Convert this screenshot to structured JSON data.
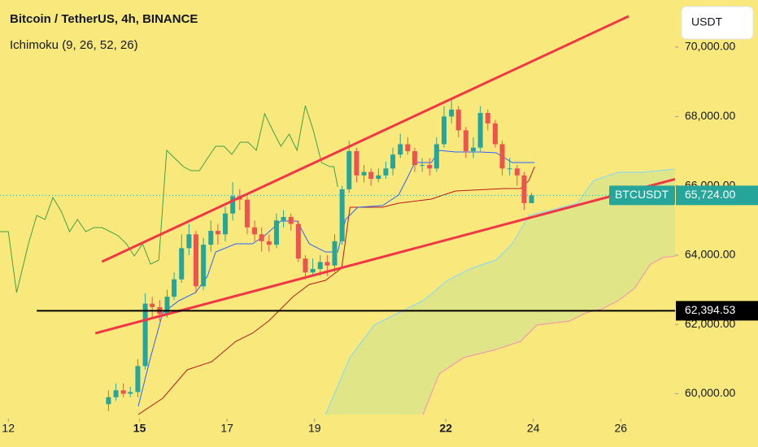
{
  "chart_data": {
    "type": "candlestick",
    "title": "Bitcoin / TetherUS, 4h, BINANCE",
    "subtitle": "Ichimoku (9, 26, 52, 26)",
    "currency_button": "USDT",
    "up_color": "#26a69a",
    "down_color": "#ef5350",
    "xlim": [
      11.81,
      27.24
    ],
    "ylim": [
      59285,
      71360
    ],
    "xticks": [
      12,
      15,
      17,
      19,
      22,
      24,
      26
    ],
    "xticks_bold": [
      false,
      true,
      false,
      false,
      true,
      false,
      false
    ],
    "yticks": [
      {
        "value": 60000,
        "label": "60,000.00"
      },
      {
        "value": 62000,
        "label": "62,000.00"
      },
      {
        "value": 64000,
        "label": "64,000.00"
      },
      {
        "value": 66000,
        "label": "66,000.00"
      },
      {
        "value": 68000,
        "label": "68,000.00"
      },
      {
        "value": 70000,
        "label": "70,000.00"
      }
    ],
    "x": [
      14.29,
      14.46,
      14.63,
      14.79,
      14.96,
      15.13,
      15.29,
      15.46,
      15.63,
      15.79,
      15.96,
      16.13,
      16.29,
      16.46,
      16.63,
      16.79,
      16.96,
      17.13,
      17.29,
      17.46,
      17.63,
      17.79,
      17.96,
      18.13,
      18.29,
      18.46,
      18.63,
      18.79,
      18.96,
      19.13,
      19.29,
      19.46,
      19.63,
      19.79,
      19.96,
      20.13,
      20.29,
      20.46,
      20.63,
      20.79,
      20.96,
      21.13,
      21.29,
      21.46,
      21.63,
      21.79,
      21.96,
      22.13,
      22.29,
      22.46,
      22.63,
      22.79,
      22.96,
      23.13,
      23.29,
      23.46,
      23.63,
      23.79,
      23.96
    ],
    "open": [
      59700,
      59900,
      60100,
      60000,
      60050,
      60800,
      62600,
      62500,
      62300,
      62800,
      63300,
      64200,
      64600,
      63100,
      64300,
      64700,
      64600,
      65200,
      65700,
      65600,
      64800,
      64600,
      64400,
      64300,
      65000,
      65100,
      64900,
      63900,
      63500,
      63600,
      63800,
      63700,
      64400,
      65900,
      67000,
      66300,
      66400,
      66200,
      66300,
      66500,
      66900,
      67200,
      67000,
      66600,
      66600,
      66500,
      67200,
      68000,
      68200,
      67600,
      67000,
      67100,
      68100,
      67800,
      67200,
      66500,
      66500,
      66300,
      65500
    ],
    "high": [
      60100,
      60300,
      60300,
      60200,
      61000,
      62900,
      62800,
      62700,
      63000,
      63500,
      64600,
      64900,
      64700,
      64500,
      65000,
      64900,
      65400,
      66100,
      65900,
      65700,
      65000,
      64800,
      64600,
      65200,
      65300,
      65200,
      65000,
      64000,
      63900,
      64000,
      64000,
      64600,
      66000,
      67300,
      67100,
      66600,
      66500,
      66500,
      66700,
      67100,
      67500,
      67400,
      67100,
      66800,
      66800,
      67400,
      68300,
      68500,
      68300,
      67700,
      67400,
      68300,
      68200,
      67900,
      67300,
      66800,
      66600,
      66400,
      65800
    ],
    "low": [
      59500,
      59800,
      59900,
      59900,
      59900,
      60700,
      62200,
      62100,
      62200,
      62700,
      63200,
      64000,
      62900,
      63000,
      64100,
      64300,
      64400,
      65000,
      65300,
      64600,
      64400,
      64100,
      64100,
      64200,
      64800,
      64700,
      63800,
      63300,
      63400,
      63400,
      63400,
      63500,
      64300,
      65800,
      66100,
      66100,
      66000,
      66100,
      66200,
      66300,
      66800,
      66900,
      66400,
      66400,
      66300,
      66400,
      67100,
      67800,
      67400,
      66800,
      66800,
      67000,
      67600,
      67100,
      66300,
      66300,
      66000,
      65300,
      65500
    ],
    "close": [
      59900,
      60100,
      60000,
      60050,
      60800,
      62600,
      62500,
      62300,
      62800,
      63300,
      64200,
      64600,
      63100,
      64300,
      64700,
      64600,
      65200,
      65700,
      65600,
      64800,
      64600,
      64400,
      64300,
      65000,
      65100,
      64900,
      63900,
      63500,
      63600,
      63800,
      63700,
      64400,
      65900,
      67000,
      66300,
      66400,
      66200,
      66300,
      66500,
      66900,
      67200,
      67000,
      66600,
      66600,
      66500,
      67200,
      68000,
      68200,
      67600,
      67000,
      67100,
      68100,
      67800,
      67200,
      66500,
      66500,
      66300,
      65500,
      65724
    ],
    "symbol_badge": "BTCUSDT",
    "last_price": {
      "value": 65724,
      "label": "65,724.00"
    },
    "last_price_color": "#26a69a",
    "tenkan": {
      "color": "#2962ff",
      "x": [
        14.97,
        15.25,
        15.53,
        15.9,
        16.28,
        16.55,
        16.74,
        17.2,
        17.58,
        17.86,
        18.23,
        18.6,
        18.88,
        19.25,
        19.53,
        19.71,
        19.99,
        20.55,
        20.92,
        21.11,
        21.29,
        21.67,
        21.85,
        22.22,
        22.78,
        23.15,
        23.52,
        23.8,
        24.03
      ],
      "values": [
        59636,
        61043,
        62333,
        62685,
        62919,
        63388,
        64091,
        64326,
        64326,
        64560,
        64982,
        64982,
        64326,
        64091,
        64091,
        65029,
        65381,
        65428,
        65733,
        66202,
        66670,
        66670,
        67022,
        66975,
        66975,
        66952,
        66670,
        66670,
        66670
      ]
    },
    "kijun": {
      "color": "#b71c1c",
      "x": [
        14.97,
        15.53,
        16.09,
        16.65,
        17.2,
        17.58,
        17.95,
        18.23,
        18.51,
        18.88,
        19.25,
        19.62,
        19.81,
        20.55,
        20.92,
        21.67,
        21.94,
        22.22,
        23.34,
        23.71,
        23.9,
        24.03
      ],
      "values": [
        59402,
        59871,
        60692,
        60926,
        61512,
        61747,
        62098,
        62450,
        62802,
        63154,
        63271,
        63623,
        65381,
        65381,
        65498,
        65616,
        65733,
        65850,
        65920,
        65920,
        66155,
        66553
      ]
    },
    "chikou": {
      "color": "#43a047",
      "x": [
        11.81,
        12.0,
        12.19,
        12.46,
        12.65,
        12.84,
        13.02,
        13.21,
        13.4,
        13.58,
        13.77,
        13.96,
        14.14,
        14.33,
        14.51,
        14.7,
        14.88,
        15.07,
        15.25,
        15.44,
        15.62,
        15.81,
        16.0,
        16.18,
        16.37,
        16.55,
        16.74,
        16.93,
        17.11,
        17.3,
        17.48,
        17.67,
        17.86,
        18.04,
        18.23,
        18.42,
        18.6,
        18.79,
        18.97,
        19.16,
        19.35,
        19.44,
        19.53
      ],
      "values": [
        64677,
        64677,
        62919,
        64326,
        65146,
        65029,
        65662,
        65264,
        64677,
        65029,
        64677,
        64794,
        64794,
        64677,
        64560,
        64326,
        63974,
        64326,
        63740,
        63857,
        67022,
        66788,
        66553,
        66436,
        66436,
        66788,
        67139,
        67139,
        66905,
        67257,
        67257,
        67022,
        68077,
        67608,
        67139,
        67491,
        67022,
        68312,
        67608,
        66670,
        66553,
        66553,
        65967
      ]
    },
    "span_a": {
      "color": "#80d8ff",
      "x": [
        19.25,
        19.81,
        20.36,
        20.92,
        21.48,
        22.04,
        22.59,
        23.15,
        23.52,
        23.9,
        24.45,
        25.01,
        25.38,
        25.94,
        26.5,
        27.24
      ],
      "values": [
        59402,
        61043,
        61981,
        62333,
        62685,
        63271,
        63623,
        63857,
        64326,
        65146,
        65311,
        65498,
        66155,
        66389,
        66389,
        66483
      ]
    },
    "span_b": {
      "color": "#f48fb1",
      "x": [
        21.48,
        21.85,
        22.41,
        23.15,
        23.71,
        24.08,
        24.83,
        25.2,
        25.57,
        25.94,
        26.31,
        26.68,
        26.96,
        27.24
      ],
      "values": [
        59402,
        60575,
        61043,
        61278,
        61512,
        61981,
        62098,
        62333,
        62450,
        62685,
        63036,
        63740,
        63927,
        63974
      ]
    },
    "cloud_color": "#d9e38a",
    "trend_lines": [
      {
        "x": [
          14.14,
          26.18
        ],
        "values": [
          63810,
          70891
        ]
      },
      {
        "x": [
          13.99,
          27.24
        ],
        "values": [
          61746,
          66190
        ]
      }
    ],
    "trend_color": "#f23645",
    "level": {
      "value": 62394.53,
      "label": "62,394.53",
      "start": 12.65,
      "color": "#000000"
    }
  }
}
